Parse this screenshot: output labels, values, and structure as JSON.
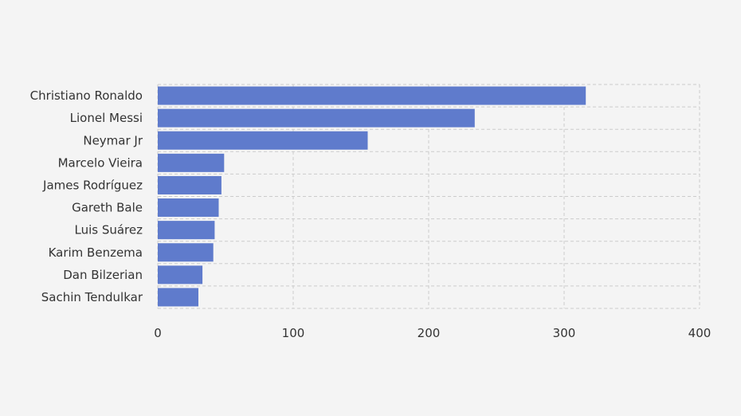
{
  "chart_data": {
    "type": "bar",
    "orientation": "horizontal",
    "categories": [
      "Christiano Ronaldo",
      "Lionel Messi",
      "Neymar Jr",
      "Marcelo Vieira",
      "James Rodríguez",
      "Gareth Bale",
      "Luis Suárez",
      "Karim Benzema",
      "Dan Bilzerian",
      "Sachin Tendulkar"
    ],
    "values": [
      316,
      234,
      155,
      49,
      47,
      45,
      42,
      41,
      33,
      30
    ],
    "xlim": [
      0,
      400
    ],
    "xticks": [
      0,
      100,
      200,
      300,
      400
    ],
    "grid": true,
    "bar_color": "#5f7bcc",
    "background": "#f4f4f4"
  }
}
